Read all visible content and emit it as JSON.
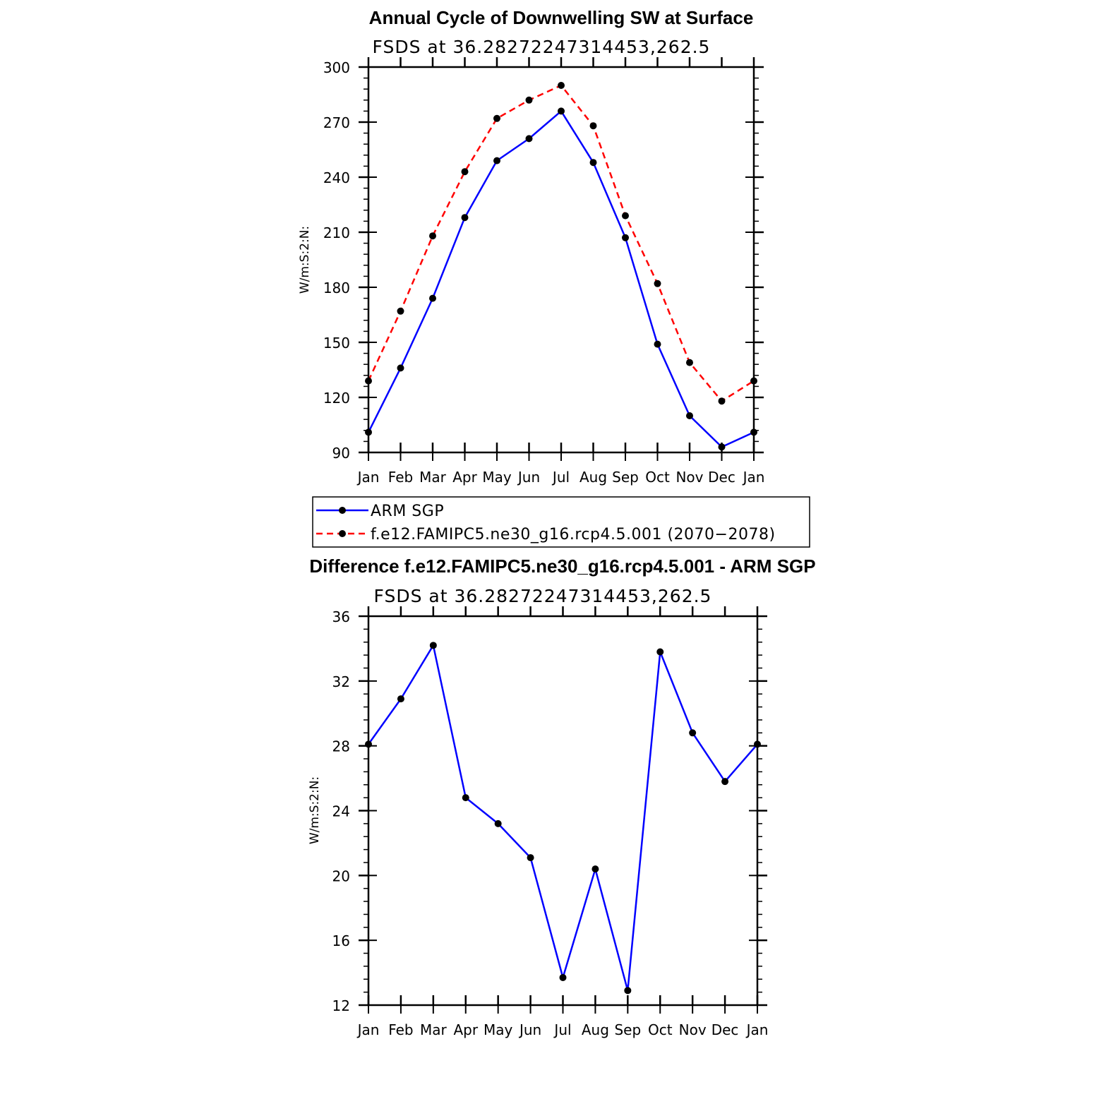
{
  "chart_data": [
    {
      "type": "line",
      "title": "Annual Cycle of Downwelling SW at Surface",
      "subtitle": "FSDS at 36.28272247314453,262.5",
      "ylabel": "W/m:S:2:N:",
      "categories": [
        "Jan",
        "Feb",
        "Mar",
        "Apr",
        "May",
        "Jun",
        "Jul",
        "Aug",
        "Sep",
        "Oct",
        "Nov",
        "Dec",
        "Jan"
      ],
      "yticks": [
        90,
        120,
        150,
        180,
        210,
        240,
        270,
        300
      ],
      "ylim": [
        90,
        300
      ],
      "series": [
        {
          "name": "ARM SGP",
          "color": "#0000ff",
          "dash": "solid",
          "values": [
            101,
            136,
            174,
            218,
            249,
            261,
            276,
            248,
            207,
            149,
            110,
            93,
            101
          ]
        },
        {
          "name": "f.e12.FAMIPC5.ne30_g16.rcp4.5.001 (2070−2078)",
          "color": "#ff0000",
          "dash": "dashed",
          "values": [
            129,
            167,
            208,
            243,
            272,
            282,
            290,
            268,
            219,
            182,
            139,
            118,
            129
          ]
        }
      ],
      "legend": "below"
    },
    {
      "type": "line",
      "title": "Difference f.e12.FAMIPC5.ne30_g16.rcp4.5.001 - ARM SGP",
      "subtitle": "FSDS at 36.28272247314453,262.5",
      "ylabel": "W/m:S:2:N:",
      "categories": [
        "Jan",
        "Feb",
        "Mar",
        "Apr",
        "May",
        "Jun",
        "Jul",
        "Aug",
        "Sep",
        "Oct",
        "Nov",
        "Dec",
        "Jan"
      ],
      "yticks": [
        12,
        16,
        20,
        24,
        28,
        32,
        36
      ],
      "ylim": [
        12,
        36
      ],
      "series": [
        {
          "color": "#0000ff",
          "dash": "solid",
          "values": [
            28.1,
            30.9,
            34.2,
            24.8,
            23.2,
            21.1,
            13.7,
            20.4,
            12.9,
            33.8,
            28.8,
            25.8,
            28.1
          ]
        }
      ]
    }
  ]
}
